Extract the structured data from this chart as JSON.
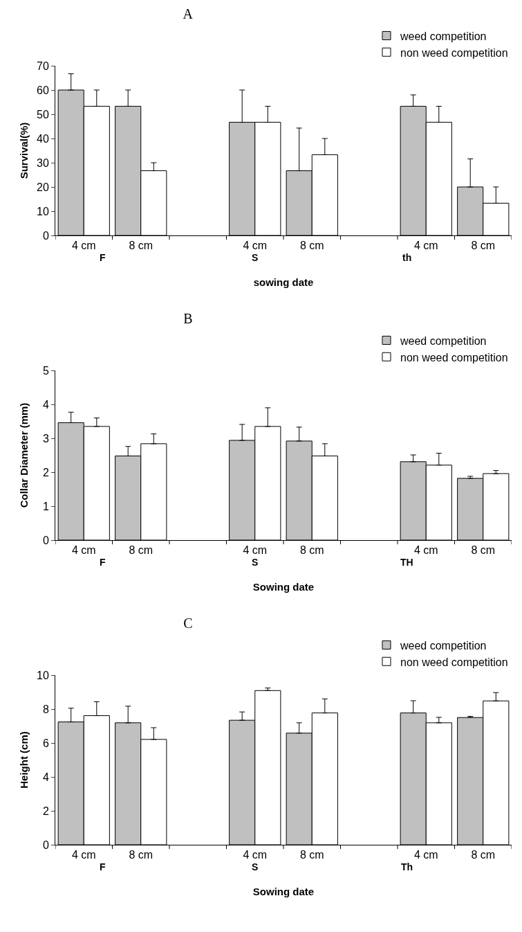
{
  "chart_data": [
    {
      "type": "bar",
      "title": "A",
      "xlabel": "sowing date",
      "ylabel": "Survival(%)",
      "categories": [
        "4 cm",
        "8 cm",
        null,
        "4 cm",
        "8 cm",
        null,
        "4 cm",
        "8 cm"
      ],
      "series": [
        {
          "name": "weed competition",
          "color": "#c0c0c0",
          "values": [
            60,
            53.3,
            null,
            46.7,
            26.7,
            null,
            53.3,
            20
          ],
          "errors": [
            [
              60,
              66.7
            ],
            [
              53.3,
              60
            ],
            null,
            [
              46.7,
              60
            ],
            [
              26.7,
              44.3
            ],
            null,
            [
              53.3,
              58
            ],
            [
              20,
              31.6
            ]
          ]
        },
        {
          "name": "non weed competition",
          "color": "#ffffff",
          "values": [
            53.3,
            26.7,
            null,
            46.7,
            33.3,
            null,
            46.7,
            13.3
          ],
          "errors": [
            [
              53.3,
              60
            ],
            [
              26.7,
              30
            ],
            null,
            [
              46.7,
              53.3
            ],
            [
              33.3,
              40
            ],
            null,
            [
              46.7,
              53.3
            ],
            [
              13.3,
              20
            ]
          ]
        }
      ],
      "annotations": [
        "F",
        "S",
        "th"
      ],
      "ylim": [
        0,
        70
      ],
      "yticks": [
        0,
        10,
        20,
        30,
        40,
        50,
        60,
        70
      ],
      "grid": false,
      "legend": "top right"
    },
    {
      "type": "bar",
      "title": "B",
      "xlabel": "Sowing date",
      "ylabel": "Collar Diameter (mm)",
      "categories": [
        "4 cm",
        "8 cm",
        null,
        "4 cm",
        "8 cm",
        null,
        "4 cm",
        "8 cm"
      ],
      "series": [
        {
          "name": "weed competition",
          "color": "#c0c0c0",
          "values": [
            3.46,
            2.48,
            null,
            2.94,
            2.92,
            null,
            2.31,
            1.82
          ],
          "errors": [
            [
              3.46,
              3.77
            ],
            [
              2.48,
              2.76
            ],
            null,
            [
              2.94,
              3.41
            ],
            [
              2.92,
              3.33
            ],
            null,
            [
              2.31,
              2.51
            ],
            [
              1.82,
              1.88
            ]
          ]
        },
        {
          "name": "non weed competition",
          "color": "#ffffff",
          "values": [
            3.35,
            2.84,
            null,
            3.35,
            2.48,
            null,
            2.21,
            1.96
          ],
          "errors": [
            [
              3.35,
              3.6
            ],
            [
              2.84,
              3.13
            ],
            null,
            [
              3.35,
              3.9
            ],
            [
              2.48,
              2.84
            ],
            null,
            [
              2.21,
              2.56
            ],
            [
              1.96,
              2.05
            ]
          ]
        }
      ],
      "annotations": [
        "F",
        "S",
        "TH"
      ],
      "ylim": [
        0,
        5
      ],
      "yticks": [
        0,
        1,
        2,
        3,
        4,
        5
      ],
      "grid": false,
      "legend": "top right"
    },
    {
      "type": "bar",
      "title": "C",
      "xlabel": "Sowing date",
      "ylabel": "Height (cm)",
      "categories": [
        "4 cm",
        "8 cm",
        null,
        "4 cm",
        "8 cm",
        null,
        "4 cm",
        "8 cm"
      ],
      "series": [
        {
          "name": "weed competition",
          "color": "#c0c0c0",
          "values": [
            7.24,
            7.19,
            null,
            7.34,
            6.58,
            null,
            7.77,
            7.5
          ],
          "errors": [
            [
              7.24,
              8.05
            ],
            [
              7.19,
              8.17
            ],
            null,
            [
              7.34,
              7.83
            ],
            [
              6.58,
              7.19
            ],
            null,
            [
              7.77,
              8.49
            ],
            [
              7.5,
              7.57
            ]
          ]
        },
        {
          "name": "non weed competition",
          "color": "#ffffff",
          "values": [
            7.61,
            6.21,
            null,
            9.09,
            7.77,
            null,
            7.19,
            8.48
          ],
          "errors": [
            [
              7.61,
              8.43
            ],
            [
              6.21,
              6.9
            ],
            null,
            [
              9.09,
              9.24
            ],
            [
              7.77,
              8.6
            ],
            null,
            [
              7.19,
              7.51
            ],
            [
              8.48,
              8.97
            ]
          ]
        }
      ],
      "annotations": [
        "F",
        "S",
        "Th"
      ],
      "ylim": [
        0,
        10
      ],
      "yticks": [
        0,
        2,
        4,
        6,
        8,
        10
      ],
      "grid": false,
      "legend": "top right"
    }
  ]
}
